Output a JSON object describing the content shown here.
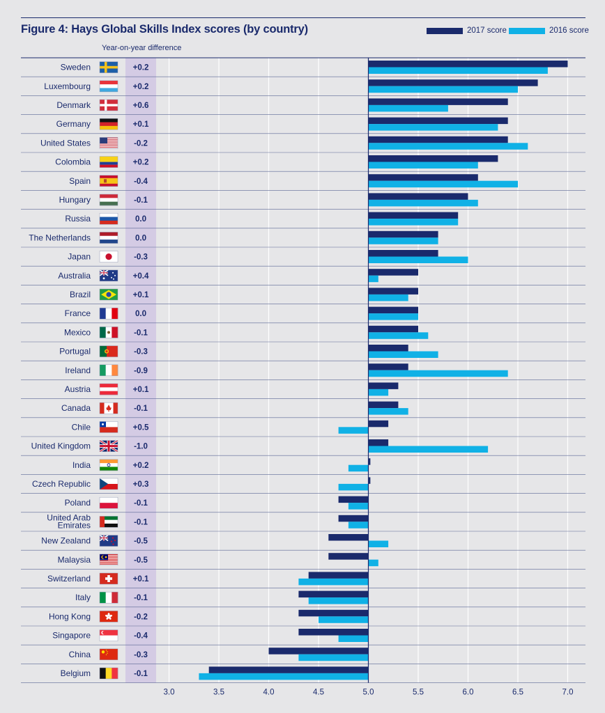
{
  "title": "Figure 4: Hays Global Skills Index scores (by country)",
  "subheading": "Year-on-year difference",
  "legend": {
    "label_2017": "2017 score",
    "label_2016": "2016 score"
  },
  "colors": {
    "score_2017": "#1a2a6c",
    "score_2016": "#10b1e6",
    "diff_column": "#d4cbe4",
    "text": "#1a2a6c",
    "background": "#e6e6e8"
  },
  "chart_data": {
    "type": "bar",
    "orientation": "horizontal",
    "baseline": 5.0,
    "xlim": [
      2.8,
      7.1
    ],
    "xticks": [
      "3.0",
      "3.5",
      "4.0",
      "4.5",
      "5.0",
      "5.5",
      "6.0",
      "6.5",
      "7.0"
    ],
    "xtick_values": [
      3.0,
      3.5,
      4.0,
      4.5,
      5.0,
      5.5,
      6.0,
      6.5,
      7.0
    ],
    "grid": "vertical",
    "legend_position": "top-right",
    "categories": [
      "Sweden",
      "Luxembourg",
      "Denmark",
      "Germany",
      "United States",
      "Colombia",
      "Spain",
      "Hungary",
      "Russia",
      "The Netherlands",
      "Japan",
      "Australia",
      "Brazil",
      "France",
      "Mexico",
      "Portugal",
      "Ireland",
      "Austria",
      "Canada",
      "Chile",
      "United Kingdom",
      "India",
      "Czech Republic",
      "Poland",
      "United Arab Emirates",
      "New Zealand",
      "Malaysia",
      "Switzerland",
      "Italy",
      "Hong Kong",
      "Singapore",
      "China",
      "Belgium"
    ],
    "flags": [
      "sweden-flag-icon",
      "luxembourg-flag-icon",
      "denmark-flag-icon",
      "germany-flag-icon",
      "united-states-flag-icon",
      "colombia-flag-icon",
      "spain-flag-icon",
      "hungary-flag-icon",
      "russia-flag-icon",
      "netherlands-flag-icon",
      "japan-flag-icon",
      "australia-flag-icon",
      "brazil-flag-icon",
      "france-flag-icon",
      "mexico-flag-icon",
      "portugal-flag-icon",
      "ireland-flag-icon",
      "austria-flag-icon",
      "canada-flag-icon",
      "chile-flag-icon",
      "united-kingdom-flag-icon",
      "india-flag-icon",
      "czech-republic-flag-icon",
      "poland-flag-icon",
      "uae-flag-icon",
      "new-zealand-flag-icon",
      "malaysia-flag-icon",
      "switzerland-flag-icon",
      "italy-flag-icon",
      "hong-kong-flag-icon",
      "singapore-flag-icon",
      "china-flag-icon",
      "belgium-flag-icon"
    ],
    "yoy_difference": [
      "+0.2",
      "+0.2",
      "+0.6",
      "+0.1",
      "-0.2",
      "+0.2",
      "-0.4",
      "-0.1",
      "0.0",
      "0.0",
      "-0.3",
      "+0.4",
      "+0.1",
      "0.0",
      "-0.1",
      "-0.3",
      "-0.9",
      "+0.1",
      "-0.1",
      "+0.5",
      "-1.0",
      "+0.2",
      "+0.3",
      "-0.1",
      "-0.1",
      "-0.5",
      "-0.5",
      "+0.1",
      "-0.1",
      "-0.2",
      "-0.4",
      "-0.3",
      "-0.1"
    ],
    "series": [
      {
        "name": "2017 score",
        "values": [
          7.0,
          6.7,
          6.4,
          6.4,
          6.4,
          6.3,
          6.1,
          6.0,
          5.9,
          5.7,
          5.7,
          5.5,
          5.5,
          5.5,
          5.5,
          5.4,
          5.4,
          5.3,
          5.3,
          5.2,
          5.2,
          5.02,
          5.02,
          4.7,
          4.7,
          4.6,
          4.6,
          4.4,
          4.3,
          4.3,
          4.3,
          4.0,
          3.4
        ]
      },
      {
        "name": "2016 score",
        "values": [
          6.8,
          6.5,
          5.8,
          6.3,
          6.6,
          6.1,
          6.5,
          6.1,
          5.9,
          5.7,
          6.0,
          5.1,
          5.4,
          5.5,
          5.6,
          5.7,
          6.4,
          5.2,
          5.4,
          4.7,
          6.2,
          4.8,
          4.7,
          4.8,
          4.8,
          5.2,
          5.1,
          4.3,
          4.4,
          4.5,
          4.7,
          4.3,
          3.3
        ]
      }
    ]
  }
}
